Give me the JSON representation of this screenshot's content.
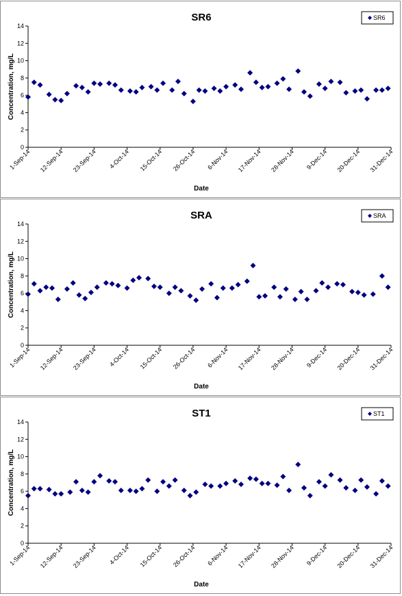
{
  "chart_data": [
    {
      "type": "scatter",
      "title": "SR6",
      "xlabel": "Date",
      "ylabel": "Concentration, mg/L",
      "ylim": [
        0,
        14
      ],
      "yticks": [
        "0",
        "2",
        "4",
        "6",
        "8",
        "10",
        "12",
        "14"
      ],
      "xlim": [
        "2014-09-01",
        "2014-12-31"
      ],
      "xticks": [
        {
          "date": "2014-09-01",
          "label": "1-Sep-14"
        },
        {
          "date": "2014-09-12",
          "label": "12-Sep-14"
        },
        {
          "date": "2014-09-23",
          "label": "23-Sep-14"
        },
        {
          "date": "2014-10-04",
          "label": "4-Oct-14"
        },
        {
          "date": "2014-10-15",
          "label": "15-Oct-14"
        },
        {
          "date": "2014-10-26",
          "label": "26-Oct-14"
        },
        {
          "date": "2014-11-06",
          "label": "6-Nov-14"
        },
        {
          "date": "2014-11-17",
          "label": "17-Nov-14"
        },
        {
          "date": "2014-11-28",
          "label": "28-Nov-14"
        },
        {
          "date": "2014-12-09",
          "label": "9-Dec-14"
        },
        {
          "date": "2014-12-20",
          "label": "20-Dec-14"
        },
        {
          "date": "2014-12-31",
          "label": "31-Dec-14"
        }
      ],
      "grid": false,
      "legend": "top-right",
      "marker_color": "#000080",
      "series": [
        {
          "name": "SR6",
          "points": [
            [
              "2014-09-01",
              5.8
            ],
            [
              "2014-09-03",
              7.5
            ],
            [
              "2014-09-05",
              7.2
            ],
            [
              "2014-09-08",
              6.1
            ],
            [
              "2014-09-10",
              5.5
            ],
            [
              "2014-09-12",
              5.4
            ],
            [
              "2014-09-14",
              6.2
            ],
            [
              "2014-09-17",
              7.1
            ],
            [
              "2014-09-19",
              6.9
            ],
            [
              "2014-09-21",
              6.4
            ],
            [
              "2014-09-23",
              7.4
            ],
            [
              "2014-09-25",
              7.3
            ],
            [
              "2014-09-28",
              7.4
            ],
            [
              "2014-09-30",
              7.2
            ],
            [
              "2014-10-02",
              6.6
            ],
            [
              "2014-10-05",
              6.5
            ],
            [
              "2014-10-07",
              6.4
            ],
            [
              "2014-10-09",
              6.9
            ],
            [
              "2014-10-12",
              7.0
            ],
            [
              "2014-10-14",
              6.6
            ],
            [
              "2014-10-16",
              7.4
            ],
            [
              "2014-10-19",
              6.6
            ],
            [
              "2014-10-21",
              7.6
            ],
            [
              "2014-10-23",
              6.2
            ],
            [
              "2014-10-26",
              5.3
            ],
            [
              "2014-10-28",
              6.6
            ],
            [
              "2014-10-30",
              6.5
            ],
            [
              "2014-11-02",
              6.8
            ],
            [
              "2014-11-04",
              6.5
            ],
            [
              "2014-11-06",
              7.0
            ],
            [
              "2014-11-09",
              7.2
            ],
            [
              "2014-11-11",
              6.7
            ],
            [
              "2014-11-14",
              8.6
            ],
            [
              "2014-11-16",
              7.5
            ],
            [
              "2014-11-18",
              6.9
            ],
            [
              "2014-11-20",
              7.0
            ],
            [
              "2014-11-23",
              7.4
            ],
            [
              "2014-11-25",
              7.9
            ],
            [
              "2014-11-27",
              6.7
            ],
            [
              "2014-11-30",
              8.8
            ],
            [
              "2014-12-02",
              6.4
            ],
            [
              "2014-12-04",
              5.9
            ],
            [
              "2014-12-07",
              7.3
            ],
            [
              "2014-12-09",
              6.8
            ],
            [
              "2014-12-11",
              7.6
            ],
            [
              "2014-12-14",
              7.5
            ],
            [
              "2014-12-16",
              6.3
            ],
            [
              "2014-12-19",
              6.5
            ],
            [
              "2014-12-21",
              6.6
            ],
            [
              "2014-12-23",
              5.6
            ],
            [
              "2014-12-26",
              6.6
            ],
            [
              "2014-12-28",
              6.6
            ],
            [
              "2014-12-30",
              6.8
            ]
          ]
        }
      ]
    },
    {
      "type": "scatter",
      "title": "SRA",
      "xlabel": "Date",
      "ylabel": "Concentration, mg/L",
      "ylim": [
        0,
        14
      ],
      "yticks": [
        "0",
        "2",
        "4",
        "6",
        "8",
        "10",
        "12",
        "14"
      ],
      "xlim": [
        "2014-09-01",
        "2014-12-31"
      ],
      "xticks": [
        {
          "date": "2014-09-01",
          "label": "1-Sep-14"
        },
        {
          "date": "2014-09-12",
          "label": "12-Sep-14"
        },
        {
          "date": "2014-09-23",
          "label": "23-Sep-14"
        },
        {
          "date": "2014-10-04",
          "label": "4-Oct-14"
        },
        {
          "date": "2014-10-15",
          "label": "15-Oct-14"
        },
        {
          "date": "2014-10-26",
          "label": "26-Oct-14"
        },
        {
          "date": "2014-11-06",
          "label": "6-Nov-14"
        },
        {
          "date": "2014-11-17",
          "label": "17-Nov-14"
        },
        {
          "date": "2014-11-28",
          "label": "28-Nov-14"
        },
        {
          "date": "2014-12-09",
          "label": "9-Dec-14"
        },
        {
          "date": "2014-12-20",
          "label": "20-Dec-14"
        },
        {
          "date": "2014-12-31",
          "label": "31-Dec-14"
        }
      ],
      "grid": false,
      "legend": "top-right",
      "marker_color": "#000080",
      "series": [
        {
          "name": "SRA",
          "points": [
            [
              "2014-09-01",
              5.9
            ],
            [
              "2014-09-03",
              7.1
            ],
            [
              "2014-09-05",
              6.3
            ],
            [
              "2014-09-07",
              6.7
            ],
            [
              "2014-09-09",
              6.6
            ],
            [
              "2014-09-11",
              5.3
            ],
            [
              "2014-09-14",
              6.5
            ],
            [
              "2014-09-16",
              7.2
            ],
            [
              "2014-09-18",
              5.8
            ],
            [
              "2014-09-20",
              5.4
            ],
            [
              "2014-09-22",
              6.1
            ],
            [
              "2014-09-24",
              6.7
            ],
            [
              "2014-09-27",
              7.2
            ],
            [
              "2014-09-29",
              7.1
            ],
            [
              "2014-10-01",
              6.9
            ],
            [
              "2014-10-04",
              6.6
            ],
            [
              "2014-10-06",
              7.5
            ],
            [
              "2014-10-08",
              7.8
            ],
            [
              "2014-10-11",
              7.7
            ],
            [
              "2014-10-13",
              6.8
            ],
            [
              "2014-10-15",
              6.7
            ],
            [
              "2014-10-18",
              6.0
            ],
            [
              "2014-10-20",
              6.7
            ],
            [
              "2014-10-22",
              6.3
            ],
            [
              "2014-10-25",
              5.7
            ],
            [
              "2014-10-27",
              5.2
            ],
            [
              "2014-10-29",
              6.5
            ],
            [
              "2014-11-01",
              7.1
            ],
            [
              "2014-11-03",
              5.5
            ],
            [
              "2014-11-05",
              6.6
            ],
            [
              "2014-11-08",
              6.6
            ],
            [
              "2014-11-10",
              7.0
            ],
            [
              "2014-11-13",
              7.4
            ],
            [
              "2014-11-15",
              9.2
            ],
            [
              "2014-11-17",
              5.6
            ],
            [
              "2014-11-19",
              5.7
            ],
            [
              "2014-11-22",
              6.7
            ],
            [
              "2014-11-24",
              5.6
            ],
            [
              "2014-11-26",
              6.5
            ],
            [
              "2014-11-29",
              5.3
            ],
            [
              "2014-12-01",
              6.2
            ],
            [
              "2014-12-03",
              5.3
            ],
            [
              "2014-12-06",
              6.3
            ],
            [
              "2014-12-08",
              7.2
            ],
            [
              "2014-12-10",
              6.7
            ],
            [
              "2014-12-13",
              7.1
            ],
            [
              "2014-12-15",
              7.0
            ],
            [
              "2014-12-18",
              6.2
            ],
            [
              "2014-12-20",
              6.1
            ],
            [
              "2014-12-22",
              5.8
            ],
            [
              "2014-12-25",
              5.9
            ],
            [
              "2014-12-28",
              8.0
            ],
            [
              "2014-12-30",
              6.7
            ]
          ]
        }
      ]
    },
    {
      "type": "scatter",
      "title": "ST1",
      "xlabel": "Date",
      "ylabel": "Concentration, mg/L",
      "ylim": [
        0,
        14
      ],
      "yticks": [
        "0",
        "2",
        "4",
        "6",
        "8",
        "10",
        "12",
        "14"
      ],
      "xlim": [
        "2014-09-01",
        "2014-12-31"
      ],
      "xticks": [
        {
          "date": "2014-09-01",
          "label": "1-Sep-14"
        },
        {
          "date": "2014-09-12",
          "label": "12-Sep-14"
        },
        {
          "date": "2014-09-23",
          "label": "23-Sep-14"
        },
        {
          "date": "2014-10-04",
          "label": "4-Oct-14"
        },
        {
          "date": "2014-10-15",
          "label": "15-Oct-14"
        },
        {
          "date": "2014-10-26",
          "label": "26-Oct-14"
        },
        {
          "date": "2014-11-06",
          "label": "6-Nov-14"
        },
        {
          "date": "2014-11-17",
          "label": "17-Nov-14"
        },
        {
          "date": "2014-11-28",
          "label": "28-Nov-14"
        },
        {
          "date": "2014-12-09",
          "label": "9-Dec-14"
        },
        {
          "date": "2014-12-20",
          "label": "20-Dec-14"
        },
        {
          "date": "2014-12-31",
          "label": "31-Dec-14"
        }
      ],
      "grid": false,
      "legend": "top-right",
      "marker_color": "#000080",
      "series": [
        {
          "name": "ST1",
          "points": [
            [
              "2014-09-01",
              5.5
            ],
            [
              "2014-09-03",
              6.3
            ],
            [
              "2014-09-05",
              6.3
            ],
            [
              "2014-09-08",
              6.2
            ],
            [
              "2014-09-10",
              5.7
            ],
            [
              "2014-09-12",
              5.7
            ],
            [
              "2014-09-15",
              5.9
            ],
            [
              "2014-09-17",
              7.1
            ],
            [
              "2014-09-19",
              6.1
            ],
            [
              "2014-09-21",
              5.9
            ],
            [
              "2014-09-23",
              7.1
            ],
            [
              "2014-09-25",
              7.8
            ],
            [
              "2014-09-28",
              7.2
            ],
            [
              "2014-09-30",
              7.1
            ],
            [
              "2014-10-02",
              6.1
            ],
            [
              "2014-10-05",
              6.1
            ],
            [
              "2014-10-07",
              6.0
            ],
            [
              "2014-10-09",
              6.3
            ],
            [
              "2014-10-11",
              7.3
            ],
            [
              "2014-10-14",
              6.0
            ],
            [
              "2014-10-16",
              7.1
            ],
            [
              "2014-10-18",
              6.6
            ],
            [
              "2014-10-20",
              7.3
            ],
            [
              "2014-10-23",
              6.1
            ],
            [
              "2014-10-25",
              5.5
            ],
            [
              "2014-10-27",
              5.9
            ],
            [
              "2014-10-30",
              6.8
            ],
            [
              "2014-11-01",
              6.6
            ],
            [
              "2014-11-04",
              6.6
            ],
            [
              "2014-11-06",
              6.9
            ],
            [
              "2014-11-09",
              7.2
            ],
            [
              "2014-11-11",
              6.8
            ],
            [
              "2014-11-14",
              7.5
            ],
            [
              "2014-11-16",
              7.4
            ],
            [
              "2014-11-18",
              6.9
            ],
            [
              "2014-11-20",
              6.9
            ],
            [
              "2014-11-23",
              6.7
            ],
            [
              "2014-11-25",
              7.7
            ],
            [
              "2014-11-27",
              6.1
            ],
            [
              "2014-11-30",
              9.1
            ],
            [
              "2014-12-02",
              6.4
            ],
            [
              "2014-12-04",
              5.5
            ],
            [
              "2014-12-07",
              7.1
            ],
            [
              "2014-12-09",
              6.6
            ],
            [
              "2014-12-11",
              7.9
            ],
            [
              "2014-12-14",
              7.3
            ],
            [
              "2014-12-16",
              6.4
            ],
            [
              "2014-12-19",
              6.1
            ],
            [
              "2014-12-21",
              7.3
            ],
            [
              "2014-12-23",
              6.5
            ],
            [
              "2014-12-26",
              5.7
            ],
            [
              "2014-12-28",
              7.2
            ],
            [
              "2014-12-30",
              6.6
            ]
          ]
        }
      ]
    }
  ]
}
